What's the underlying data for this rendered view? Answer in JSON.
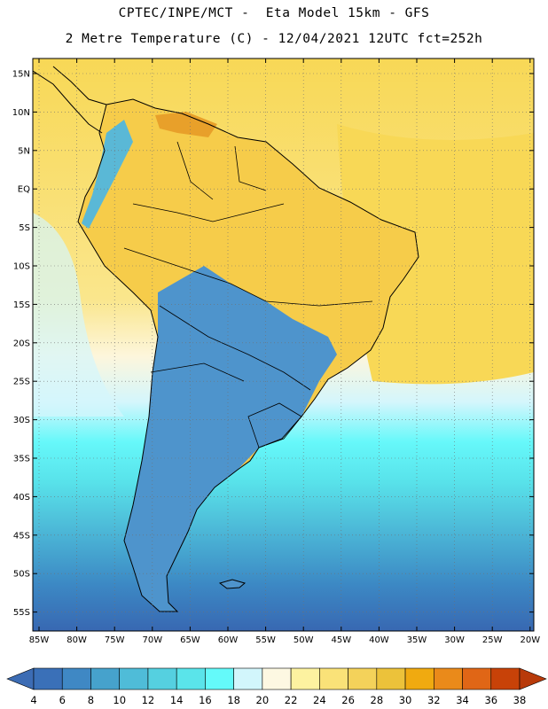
{
  "title_line1": "CPTEC/INPE/MCT -  Eta Model 15km - GFS",
  "title_line2": "2 Metre Temperature (C) - 12/04/2021 12UTC fct=252h",
  "lat_labels": [
    "15N",
    "10N",
    "5N",
    "EQ",
    "5S",
    "10S",
    "15S",
    "20S",
    "25S",
    "30S",
    "35S",
    "40S",
    "45S",
    "50S",
    "55S"
  ],
  "lon_labels": [
    "85W",
    "80W",
    "75W",
    "70W",
    "65W",
    "60W",
    "55W",
    "50W",
    "45W",
    "40W",
    "35W",
    "30W",
    "25W",
    "20W"
  ],
  "colorbar": {
    "labels": [
      "4",
      "6",
      "8",
      "10",
      "12",
      "14",
      "16",
      "18",
      "20",
      "22",
      "24",
      "26",
      "28",
      "30",
      "32",
      "34",
      "36",
      "38"
    ],
    "under_color": "#3c6cb4",
    "over_color": "#b83a0a",
    "colors": [
      "#3a70b8",
      "#3f88c4",
      "#46a2cc",
      "#4fbcd8",
      "#55d0e0",
      "#5ae4ea",
      "#64fafa",
      "#d2f6fc",
      "#fdf8e2",
      "#fdf2a0",
      "#fae278",
      "#f4d25a",
      "#ecc23a",
      "#f0aa10",
      "#ea8a1a",
      "#e06616",
      "#c84208"
    ]
  },
  "map_colors": {
    "ocean_warm": "#f8d856",
    "ocean_mild": "#fae68c",
    "ocean_20": "#fdf6dc",
    "ocean_18": "#d4f6fc",
    "ocean_16": "#66f8fa",
    "ocean_14": "#58e2ea",
    "ocean_12": "#50c4dc",
    "ocean_10": "#46a6d0",
    "ocean_8": "#3c88c4",
    "ocean_6": "#3868b2",
    "land_warm": "#f6cc4a",
    "land_hot": "#e8a02a",
    "land_cool": "#4e94cc",
    "andes": "#5ab8d6",
    "boundary": "#000000",
    "grid": "#707070"
  }
}
